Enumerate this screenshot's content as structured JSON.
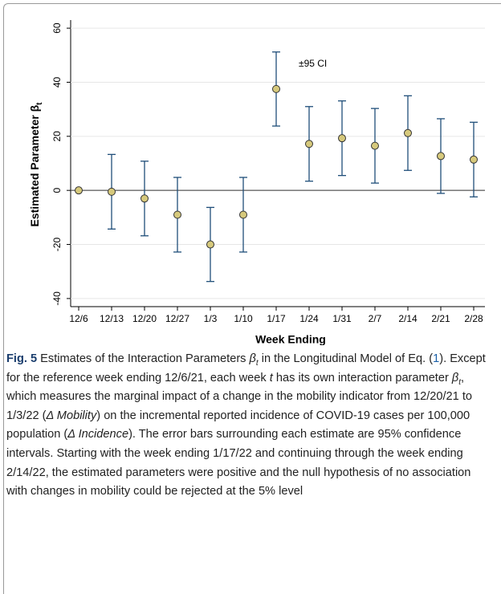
{
  "chart_data": {
    "type": "errorbar",
    "ylabel": "Estimated Parameter β",
    "ylabel_sub": "t",
    "xlabel": "Week Ending",
    "annotation": "±95 CI",
    "categories": [
      "12/6",
      "12/13",
      "12/20",
      "12/27",
      "1/3",
      "1/10",
      "1/17",
      "1/24",
      "1/31",
      "2/7",
      "2/14",
      "2/21",
      "2/28"
    ],
    "values": [
      0,
      -0.5,
      -3,
      -9,
      -20,
      -9,
      37.5,
      17.2,
      19.3,
      16.5,
      21.2,
      12.7,
      11.4
    ],
    "errors": [
      null,
      13.8,
      13.8,
      13.8,
      13.7,
      13.8,
      13.7,
      13.8,
      13.8,
      13.8,
      13.8,
      13.8,
      13.8
    ],
    "ylim": [
      -43,
      63
    ],
    "yticks": [
      -40,
      -20,
      0,
      20,
      40,
      60
    ],
    "grid": true,
    "reference_line": 0,
    "color": "#1f4e79",
    "marker_color": "#d6c97c"
  },
  "caption": {
    "label": "Fig. 5",
    "parts": [
      {
        "text": " Estimates of the Interaction Parameters ",
        "italic": false
      },
      {
        "text": "β",
        "italic": true
      },
      {
        "text": "t",
        "italic": true,
        "sub": true
      },
      {
        "text": " in the Longitudinal Model of Eq. (",
        "italic": false
      },
      {
        "text": "1",
        "italic": false,
        "link": true
      },
      {
        "text": "). Except for the reference week ending 12/6/21, each week ",
        "italic": false
      },
      {
        "text": "t",
        "italic": true
      },
      {
        "text": " has its own interaction parameter ",
        "italic": false
      },
      {
        "text": "β",
        "italic": true
      },
      {
        "text": "t",
        "italic": true,
        "sub": true
      },
      {
        "text": ", which measures the marginal impact of a change in the mobility indicator from 12/20/21 to 1/3/22 (",
        "italic": false
      },
      {
        "text": "Δ Mobility",
        "italic": true
      },
      {
        "text": ") on the incremental reported incidence of COVID-19 cases per 100,000 population (",
        "italic": false
      },
      {
        "text": "Δ Incidence",
        "italic": true
      },
      {
        "text": "). The error bars surrounding each estimate are 95% confidence intervals. Starting with the week ending 1/17/22 and continuing through the week ending 2/14/22, the estimated parameters were positive and the null hypothesis of no association with changes in mobility could be rejected at the 5% level",
        "italic": false
      }
    ]
  }
}
